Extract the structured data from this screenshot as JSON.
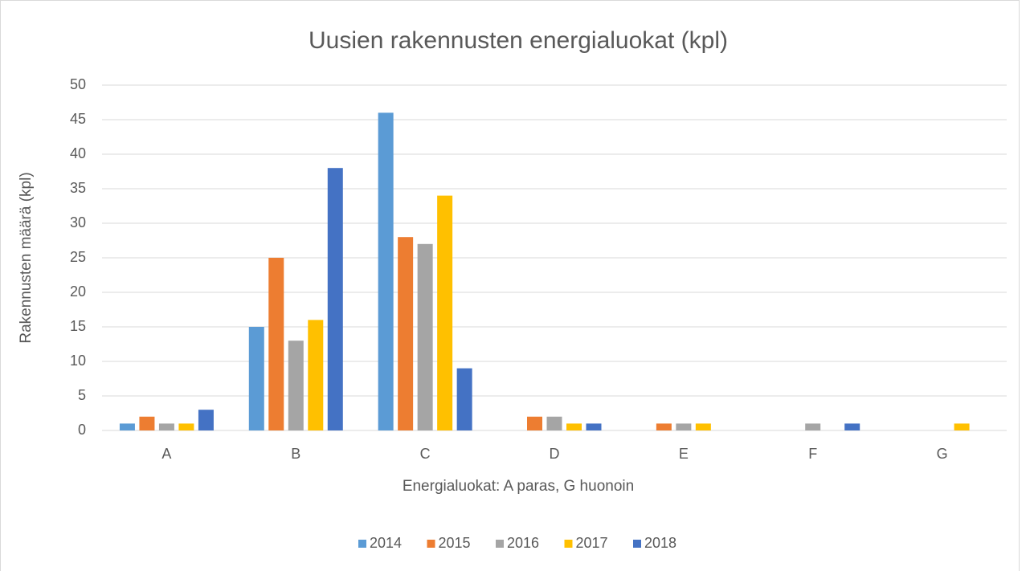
{
  "chart_data": {
    "type": "bar",
    "title": "Uusien rakennusten energialuokat  (kpl)",
    "x_label": "Energialuokat: A paras, G huonoin",
    "y_label": "Rakennusten määrä (kpl)",
    "categories": [
      "A",
      "B",
      "C",
      "D",
      "E",
      "F",
      "G"
    ],
    "series": [
      {
        "name": "2014",
        "color": "#5b9bd5",
        "values": [
          1,
          15,
          46,
          0,
          0,
          0,
          0
        ]
      },
      {
        "name": "2015",
        "color": "#ed7d31",
        "values": [
          2,
          25,
          28,
          2,
          1,
          0,
          0
        ]
      },
      {
        "name": "2016",
        "color": "#a5a5a5",
        "values": [
          1,
          13,
          27,
          2,
          1,
          1,
          0
        ]
      },
      {
        "name": "2017",
        "color": "#ffc000",
        "values": [
          1,
          16,
          34,
          1,
          1,
          0,
          1
        ]
      },
      {
        "name": "2018",
        "color": "#4472c4",
        "values": [
          3,
          38,
          9,
          1,
          0,
          1,
          0
        ]
      }
    ],
    "ylim": [
      0,
      50
    ],
    "yticks": [
      0,
      5,
      10,
      15,
      20,
      25,
      30,
      35,
      40,
      45,
      50
    ],
    "grid": true,
    "legend": "bottom"
  }
}
